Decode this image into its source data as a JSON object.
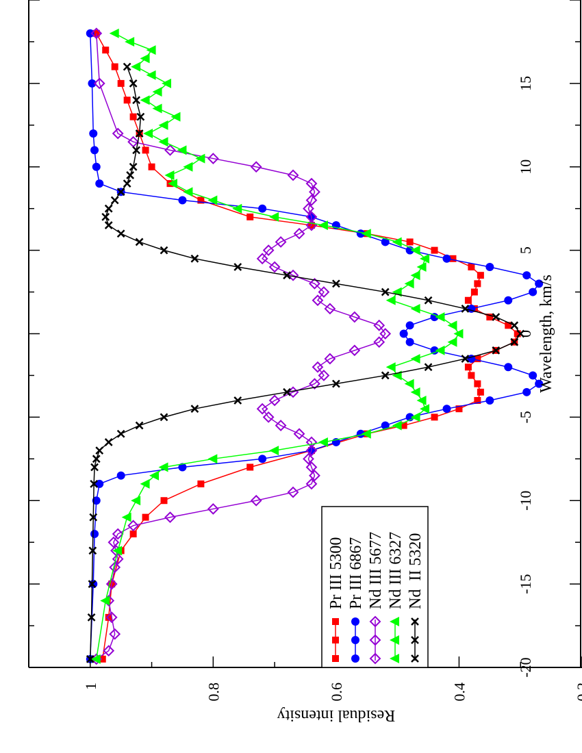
{
  "chart_data": {
    "type": "line",
    "orientation": "rotated 90 degrees clockwise",
    "title": "",
    "xlabel": "Wavelength, km/s",
    "ylabel": "Residual intensity",
    "xlim": [
      -20,
      20
    ],
    "ylim": [
      0.2,
      1.1
    ],
    "xticks": [
      -20,
      -15,
      -10,
      -5,
      0,
      5,
      10,
      15
    ],
    "xtick_labels": [
      "-20",
      "-15",
      "-10",
      "-5",
      "0",
      "5",
      "10",
      "15"
    ],
    "yticks": [
      0.2,
      0.4,
      0.6,
      0.8,
      1.0
    ],
    "ytick_labels": [
      "0.2",
      "0.4",
      "0.6",
      "0.8",
      "1"
    ],
    "grid": false,
    "legend_placement": "lower-left",
    "series": [
      {
        "name": "Pr III 5300",
        "color": "#ff0000",
        "marker": "filled-square",
        "x": [
          -19.5,
          -17,
          -15,
          -13,
          -12,
          -11,
          -10,
          -9,
          -8,
          -7,
          -6,
          -5.5,
          -5,
          -4.5,
          -4,
          -3.5,
          -3,
          -2.5,
          -2,
          -1.5,
          -1,
          -0.5,
          0,
          0.5,
          1,
          1.5,
          2,
          2.5,
          3,
          3.5,
          4,
          4.5,
          5,
          5.5,
          6,
          6.5,
          7,
          8,
          9,
          10,
          11,
          12,
          13,
          14,
          15,
          16,
          17,
          18
        ],
        "y": [
          0.98,
          0.97,
          0.965,
          0.95,
          0.93,
          0.91,
          0.88,
          0.82,
          0.74,
          0.64,
          0.55,
          0.49,
          0.44,
          0.4,
          0.37,
          0.365,
          0.37,
          0.38,
          0.385,
          0.37,
          0.34,
          0.31,
          0.305,
          0.32,
          0.35,
          0.375,
          0.385,
          0.375,
          0.37,
          0.365,
          0.38,
          0.41,
          0.44,
          0.48,
          0.55,
          0.64,
          0.74,
          0.82,
          0.87,
          0.9,
          0.91,
          0.92,
          0.93,
          0.94,
          0.95,
          0.96,
          0.975,
          0.99
        ]
      },
      {
        "name": "Pr III 6867",
        "color": "#0000ff",
        "marker": "filled-circle",
        "x": [
          -19.5,
          -15,
          -12,
          -10,
          -9,
          -8.5,
          -8,
          -7.5,
          -7,
          -6.5,
          -6,
          -5.5,
          -5,
          -4.5,
          -4,
          -3.5,
          -3,
          -2.5,
          -2,
          -1.5,
          -1,
          -0.5,
          0,
          0.5,
          1,
          1.5,
          2,
          2.5,
          3,
          3.5,
          4,
          4.5,
          5,
          5.5,
          6,
          6.5,
          7,
          7.5,
          8,
          8.5,
          9,
          10,
          11,
          12,
          15,
          18
        ],
        "y": [
          1.0,
          0.995,
          0.993,
          0.99,
          0.985,
          0.95,
          0.85,
          0.72,
          0.64,
          0.6,
          0.56,
          0.52,
          0.48,
          0.42,
          0.35,
          0.29,
          0.27,
          0.28,
          0.32,
          0.38,
          0.44,
          0.48,
          0.49,
          0.48,
          0.44,
          0.38,
          0.32,
          0.28,
          0.27,
          0.29,
          0.35,
          0.42,
          0.48,
          0.52,
          0.56,
          0.6,
          0.64,
          0.72,
          0.85,
          0.95,
          0.985,
          0.99,
          0.993,
          0.995,
          0.997,
          1.0
        ]
      },
      {
        "name": "Nd III 5677",
        "color": "#9400d3",
        "marker": "open-diamond",
        "x": [
          -19.5,
          -19,
          -18,
          -17,
          -16,
          -15,
          -14,
          -13.5,
          -13,
          -12.5,
          -12,
          -11.5,
          -11,
          -10.5,
          -10,
          -9.5,
          -9,
          -8.5,
          -8,
          -7.5,
          -7,
          -6.5,
          -6,
          -5.5,
          -5,
          -4.5,
          -4,
          -3.5,
          -3,
          -2.5,
          -2,
          -1.5,
          -1,
          -0.5,
          0,
          0.5,
          1,
          1.5,
          2,
          2.5,
          3,
          3.5,
          4,
          4.5,
          5,
          5.5,
          6,
          6.5,
          7,
          7.5,
          8,
          8.5,
          9,
          9.5,
          10,
          10.5,
          11,
          11.5,
          12,
          15,
          18
        ],
        "y": [
          0.99,
          0.97,
          0.96,
          0.965,
          0.97,
          0.965,
          0.96,
          0.955,
          0.958,
          0.962,
          0.955,
          0.93,
          0.87,
          0.8,
          0.73,
          0.67,
          0.64,
          0.635,
          0.64,
          0.645,
          0.64,
          0.64,
          0.66,
          0.69,
          0.71,
          0.72,
          0.7,
          0.67,
          0.635,
          0.62,
          0.63,
          0.61,
          0.57,
          0.53,
          0.52,
          0.53,
          0.57,
          0.61,
          0.63,
          0.62,
          0.635,
          0.67,
          0.7,
          0.72,
          0.71,
          0.69,
          0.66,
          0.64,
          0.64,
          0.645,
          0.64,
          0.635,
          0.64,
          0.67,
          0.73,
          0.8,
          0.87,
          0.93,
          0.955,
          0.985,
          0.99
        ]
      },
      {
        "name": "Nd III 6327",
        "color": "#00ff00",
        "marker": "filled-triangle-left",
        "x": [
          -19.5,
          -16,
          -13,
          -11,
          -10,
          -9,
          -8.5,
          -8,
          -7.5,
          -7,
          -6.5,
          -6,
          -5.5,
          -5,
          -4.5,
          -4,
          -3.5,
          -3,
          -2.5,
          -2,
          -1.5,
          -1,
          -0.5,
          0,
          0.5,
          1,
          1.5,
          2,
          2.5,
          3,
          3.5,
          4,
          4.5,
          5,
          5.5,
          6,
          6.5,
          7,
          7.5,
          8,
          8.5,
          9,
          9.5,
          10,
          10.5,
          11,
          11.5,
          12,
          12.5,
          13,
          13.5,
          14,
          14.5,
          15,
          15.5,
          16,
          16.5,
          17,
          17.5,
          18
        ],
        "y": [
          0.99,
          0.975,
          0.955,
          0.94,
          0.925,
          0.91,
          0.895,
          0.88,
          0.8,
          0.7,
          0.62,
          0.55,
          0.5,
          0.47,
          0.455,
          0.46,
          0.47,
          0.48,
          0.5,
          0.51,
          0.47,
          0.43,
          0.41,
          0.4,
          0.41,
          0.43,
          0.47,
          0.51,
          0.5,
          0.48,
          0.47,
          0.46,
          0.455,
          0.47,
          0.5,
          0.55,
          0.62,
          0.7,
          0.76,
          0.8,
          0.84,
          0.865,
          0.87,
          0.84,
          0.82,
          0.85,
          0.88,
          0.905,
          0.88,
          0.86,
          0.89,
          0.91,
          0.89,
          0.875,
          0.9,
          0.925,
          0.91,
          0.9,
          0.935,
          0.96
        ]
      },
      {
        "name": "Nd  II 5320",
        "color": "#000000",
        "marker": "cross",
        "x": [
          -19.5,
          -17,
          -15,
          -13,
          -11,
          -9,
          -8,
          -7.5,
          -7,
          -6.5,
          -6,
          -5.5,
          -5,
          -4.5,
          -4,
          -3.5,
          -3,
          -2.5,
          -2,
          -1.5,
          -1,
          -0.5,
          0,
          0.5,
          1,
          1.5,
          2,
          2.5,
          3,
          3.5,
          4,
          4.5,
          5,
          5.5,
          6,
          6.5,
          7,
          7.5,
          8,
          8.5,
          9,
          9.5,
          10,
          11,
          12,
          13,
          14,
          15,
          16
        ],
        "y": [
          1.0,
          0.998,
          0.997,
          0.996,
          0.995,
          0.994,
          0.993,
          0.99,
          0.985,
          0.97,
          0.95,
          0.92,
          0.88,
          0.83,
          0.76,
          0.68,
          0.6,
          0.52,
          0.45,
          0.39,
          0.34,
          0.31,
          0.3,
          0.31,
          0.34,
          0.39,
          0.45,
          0.52,
          0.6,
          0.68,
          0.76,
          0.83,
          0.88,
          0.92,
          0.95,
          0.97,
          0.975,
          0.97,
          0.96,
          0.95,
          0.94,
          0.935,
          0.93,
          0.925,
          0.92,
          0.918,
          0.925,
          0.93,
          0.94
        ]
      }
    ]
  }
}
